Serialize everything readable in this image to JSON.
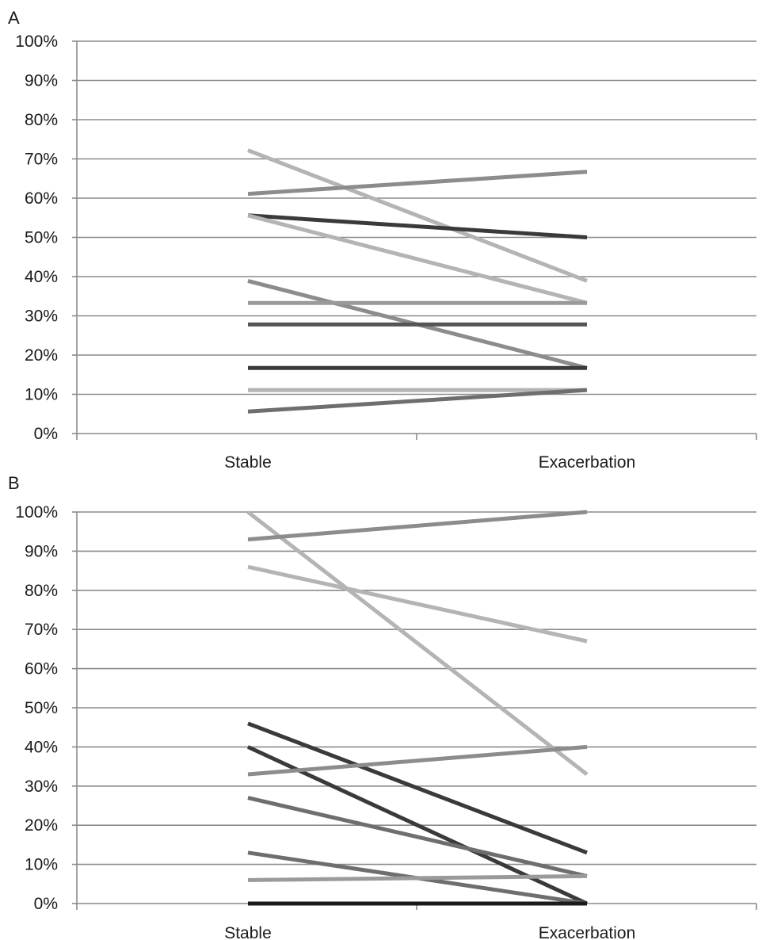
{
  "chart_data": [
    {
      "panel_label": "A",
      "type": "line",
      "categories": [
        "Stable",
        "Exacerbation"
      ],
      "ylim": [
        0,
        100
      ],
      "yticks": [
        "0%",
        "10%",
        "20%",
        "30%",
        "40%",
        "50%",
        "60%",
        "70%",
        "80%",
        "90%",
        "100%"
      ],
      "grid": true,
      "series": [
        {
          "values": [
            72.2,
            38.9
          ],
          "color": "#b4b4b4"
        },
        {
          "values": [
            61.1,
            66.7
          ],
          "color": "#8c8c8c"
        },
        {
          "values": [
            55.6,
            50.0
          ],
          "color": "#3a3a3a"
        },
        {
          "values": [
            55.6,
            33.3
          ],
          "color": "#b4b4b4"
        },
        {
          "values": [
            38.9,
            16.7
          ],
          "color": "#8c8c8c"
        },
        {
          "values": [
            33.3,
            33.3
          ],
          "color": "#9a9a9a"
        },
        {
          "values": [
            27.8,
            27.8
          ],
          "color": "#555555"
        },
        {
          "values": [
            16.7,
            16.7
          ],
          "color": "#3a3a3a"
        },
        {
          "values": [
            11.1,
            11.1
          ],
          "color": "#b4b4b4"
        },
        {
          "values": [
            5.6,
            11.1
          ],
          "color": "#6e6e6e"
        }
      ]
    },
    {
      "panel_label": "B",
      "type": "line",
      "categories": [
        "Stable",
        "Exacerbation"
      ],
      "ylim": [
        0,
        100
      ],
      "yticks": [
        "0%",
        "10%",
        "20%",
        "30%",
        "40%",
        "50%",
        "60%",
        "70%",
        "80%",
        "90%",
        "100%"
      ],
      "grid": true,
      "series": [
        {
          "values": [
            100,
            33
          ],
          "color": "#b4b4b4"
        },
        {
          "values": [
            93,
            100
          ],
          "color": "#8c8c8c"
        },
        {
          "values": [
            86,
            67
          ],
          "color": "#b4b4b4"
        },
        {
          "values": [
            46,
            13
          ],
          "color": "#3a3a3a"
        },
        {
          "values": [
            40,
            0
          ],
          "color": "#3a3a3a"
        },
        {
          "values": [
            33,
            40
          ],
          "color": "#8c8c8c"
        },
        {
          "values": [
            27,
            7
          ],
          "color": "#6e6e6e"
        },
        {
          "values": [
            13,
            0
          ],
          "color": "#6e6e6e"
        },
        {
          "values": [
            6,
            7
          ],
          "color": "#9a9a9a"
        },
        {
          "values": [
            0,
            0
          ],
          "color": "#1a1a1a"
        }
      ]
    }
  ]
}
